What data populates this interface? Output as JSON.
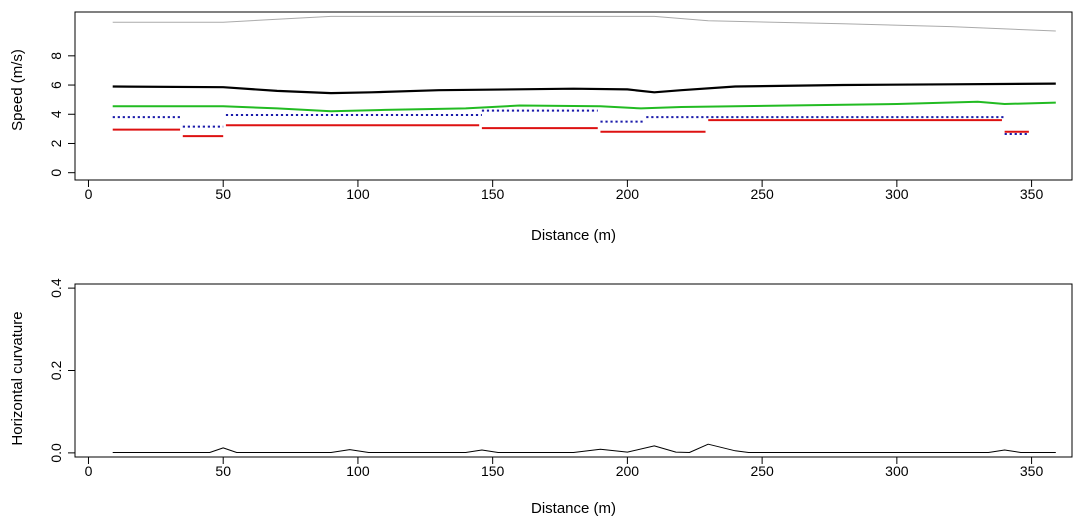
{
  "chart_data": [
    {
      "type": "line",
      "xlabel": "Distance (m)",
      "ylabel": "Speed (m/s)",
      "xlim": [
        -5,
        365
      ],
      "ylim": [
        -0.5,
        11
      ],
      "x_ticks": [
        0,
        50,
        100,
        150,
        200,
        250,
        300,
        350
      ],
      "y_ticks": [
        0,
        2,
        4,
        6,
        8
      ],
      "grid": false,
      "legend": "none",
      "series": [
        {
          "color": "#aaaaaa",
          "width": 1,
          "dash": "solid",
          "points": [
            [
              9,
              10.3
            ],
            [
              50,
              10.3
            ],
            [
              70,
              10.5
            ],
            [
              90,
              10.7
            ],
            [
              130,
              10.7
            ],
            [
              180,
              10.7
            ],
            [
              210,
              10.7
            ],
            [
              230,
              10.4
            ],
            [
              280,
              10.2
            ],
            [
              320,
              10.0
            ],
            [
              359,
              9.7
            ]
          ]
        },
        {
          "color": "#000000",
          "width": 2.2,
          "dash": "solid",
          "points": [
            [
              9,
              5.9
            ],
            [
              50,
              5.85
            ],
            [
              70,
              5.6
            ],
            [
              90,
              5.45
            ],
            [
              105,
              5.5
            ],
            [
              130,
              5.65
            ],
            [
              180,
              5.75
            ],
            [
              200,
              5.7
            ],
            [
              210,
              5.5
            ],
            [
              220,
              5.65
            ],
            [
              240,
              5.9
            ],
            [
              280,
              6.0
            ],
            [
              320,
              6.05
            ],
            [
              359,
              6.1
            ]
          ]
        },
        {
          "color": "#22bb22",
          "width": 2,
          "dash": "solid",
          "points": [
            [
              9,
              4.55
            ],
            [
              50,
              4.55
            ],
            [
              70,
              4.4
            ],
            [
              90,
              4.2
            ],
            [
              110,
              4.3
            ],
            [
              140,
              4.4
            ],
            [
              160,
              4.6
            ],
            [
              190,
              4.55
            ],
            [
              205,
              4.4
            ],
            [
              220,
              4.5
            ],
            [
              260,
              4.6
            ],
            [
              300,
              4.7
            ],
            [
              330,
              4.85
            ],
            [
              340,
              4.7
            ],
            [
              359,
              4.8
            ]
          ]
        },
        {
          "color": "#1a1aaa",
          "width": 2,
          "dash": "dotted",
          "segments": [
            {
              "x": [
                9,
                34
              ],
              "y": 3.8
            },
            {
              "x": [
                35,
                50
              ],
              "y": 3.15
            },
            {
              "x": [
                51,
                146
              ],
              "y": 3.95
            },
            {
              "x": [
                146,
                189
              ],
              "y": 4.25
            },
            {
              "x": [
                190,
                206
              ],
              "y": 3.5
            },
            {
              "x": [
                207,
                340
              ],
              "y": 3.8
            },
            {
              "x": [
                340,
                349
              ],
              "y": 2.65
            }
          ]
        },
        {
          "color": "#dd1111",
          "width": 2,
          "dash": "solid",
          "segments": [
            {
              "x": [
                9,
                34
              ],
              "y": 2.95
            },
            {
              "x": [
                35,
                50
              ],
              "y": 2.5
            },
            {
              "x": [
                51,
                145
              ],
              "y": 3.25
            },
            {
              "x": [
                146,
                189
              ],
              "y": 3.05
            },
            {
              "x": [
                190,
                229
              ],
              "y": 2.8
            },
            {
              "x": [
                230,
                339
              ],
              "y": 3.6
            },
            {
              "x": [
                340,
                349
              ],
              "y": 2.8
            }
          ]
        }
      ]
    },
    {
      "type": "line",
      "xlabel": "Distance (m)",
      "ylabel": "Horizontal curvature",
      "xlim": [
        -5,
        365
      ],
      "ylim": [
        -0.01,
        0.41
      ],
      "x_ticks": [
        0,
        50,
        100,
        150,
        200,
        250,
        300,
        350
      ],
      "y_ticks": [
        0.0,
        0.2,
        0.4
      ],
      "y_tick_labels": [
        "0.0",
        "0.2",
        "0.4"
      ],
      "grid": false,
      "legend": "none",
      "series": [
        {
          "color": "#000000",
          "width": 1,
          "dash": "solid",
          "points": [
            [
              9,
              0.001
            ],
            [
              45,
              0.001
            ],
            [
              50,
              0.012
            ],
            [
              55,
              0.001
            ],
            [
              90,
              0.001
            ],
            [
              97,
              0.008
            ],
            [
              104,
              0.001
            ],
            [
              140,
              0.001
            ],
            [
              146,
              0.007
            ],
            [
              152,
              0.001
            ],
            [
              180,
              0.001
            ],
            [
              190,
              0.009
            ],
            [
              200,
              0.002
            ],
            [
              210,
              0.017
            ],
            [
              218,
              0.002
            ],
            [
              223,
              0.001
            ],
            [
              230,
              0.021
            ],
            [
              240,
              0.005
            ],
            [
              245,
              0.001
            ],
            [
              334,
              0.001
            ],
            [
              340,
              0.007
            ],
            [
              346,
              0.001
            ],
            [
              359,
              0.001
            ]
          ]
        }
      ]
    }
  ]
}
